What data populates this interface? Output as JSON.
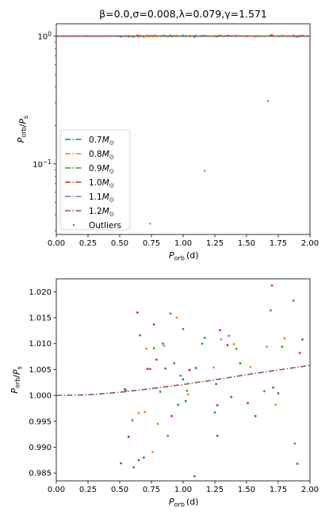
{
  "chart_data": [
    {
      "type": "line",
      "title": "β=0.0,σ=0.008,λ=0.079,γ=1.571",
      "xlabel": "P_orb(d)",
      "ylabel": "P_orb/P_s",
      "xlim": [
        0.0,
        2.0
      ],
      "ylim": [
        0.028,
        1.25
      ],
      "yscale": "log",
      "grid": false,
      "legend_position": "lower-left",
      "x_ticks": [
        "0.00",
        "0.25",
        "0.50",
        "0.75",
        "1.00",
        "1.25",
        "1.50",
        "1.75",
        "2.00"
      ],
      "y_ticks": [
        {
          "value": 1.0,
          "label": "10^0"
        },
        {
          "value": 0.1,
          "label": "10^-1"
        }
      ],
      "series": [
        {
          "name": "0.7M_⊙",
          "color": "#1f77b4",
          "style": "dashdot",
          "x": [
            0.0,
            2.0
          ],
          "y": [
            1.0,
            1.0
          ]
        },
        {
          "name": "0.8M_⊙",
          "color": "#ff7f0e",
          "style": "dashdot",
          "x": [
            0.0,
            2.0
          ],
          "y": [
            1.0,
            1.0
          ]
        },
        {
          "name": "0.9M_⊙",
          "color": "#2ca02c",
          "style": "dashdot",
          "x": [
            0.0,
            2.0
          ],
          "y": [
            1.0,
            1.0
          ]
        },
        {
          "name": "1.0M_⊙",
          "color": "#d62728",
          "style": "dashdot",
          "x": [
            0.0,
            2.0
          ],
          "y": [
            1.0,
            1.0
          ]
        },
        {
          "name": "1.1M_⊙",
          "color": "#9467bd",
          "style": "dashdot",
          "x": [
            0.0,
            2.0
          ],
          "y": [
            1.0,
            1.0
          ]
        },
        {
          "name": "1.2M_⊙",
          "color": "#8c564b",
          "style": "dashdot",
          "x": [
            0.0,
            2.0
          ],
          "y": [
            1.0,
            1.0
          ]
        }
      ],
      "outliers": {
        "name": "Outliers",
        "color": "#7f7f7f",
        "points": [
          [
            0.74,
            0.034
          ],
          [
            1.17,
            0.088
          ],
          [
            1.67,
            0.31
          ]
        ]
      }
    },
    {
      "type": "scatter",
      "xlabel": "P_orb(d)",
      "ylabel": "P_orb/P_s",
      "xlim": [
        0.0,
        2.0
      ],
      "ylim": [
        0.9835,
        1.0225
      ],
      "grid": false,
      "x_ticks": [
        "0.00",
        "0.25",
        "0.50",
        "0.75",
        "1.00",
        "1.25",
        "1.50",
        "1.75",
        "2.00"
      ],
      "y_ticks": [
        "0.985",
        "0.990",
        "0.995",
        "1.000",
        "1.005",
        "1.010",
        "1.015",
        "1.020"
      ],
      "curve": {
        "color": "#8c564b",
        "style": "dashdot",
        "x": [
          0.0,
          0.25,
          0.5,
          0.75,
          1.0,
          1.25,
          1.5,
          1.75,
          2.0
        ],
        "y": [
          1.0,
          1.0001,
          1.0006,
          1.0013,
          1.0021,
          1.003,
          1.004,
          1.0049,
          1.0058
        ]
      },
      "points": [
        {
          "x": 0.51,
          "y": 0.9869,
          "color": "#1f77b4"
        },
        {
          "x": 0.54,
          "y": 1.0012,
          "color": "#1f77b4"
        },
        {
          "x": 0.55,
          "y": 1.0009,
          "color": "#8c564b"
        },
        {
          "x": 0.57,
          "y": 0.992,
          "color": "#d62728"
        },
        {
          "x": 0.6,
          "y": 0.9952,
          "color": "#2ca02c"
        },
        {
          "x": 0.61,
          "y": 0.9861,
          "color": "#1f77b4"
        },
        {
          "x": 0.64,
          "y": 1.016,
          "color": "#d62728"
        },
        {
          "x": 0.65,
          "y": 0.9875,
          "color": "#1f77b4"
        },
        {
          "x": 0.65,
          "y": 0.9966,
          "color": "#ff7f0e"
        },
        {
          "x": 0.66,
          "y": 1.0116,
          "color": "#2ca02c"
        },
        {
          "x": 0.69,
          "y": 0.988,
          "color": "#1f77b4"
        },
        {
          "x": 0.7,
          "y": 0.9968,
          "color": "#ff7f0e"
        },
        {
          "x": 0.71,
          "y": 1.009,
          "color": "#ff7f0e"
        },
        {
          "x": 0.72,
          "y": 1.0051,
          "color": "#d62728"
        },
        {
          "x": 0.74,
          "y": 1.0051,
          "color": "#8c564b"
        },
        {
          "x": 0.76,
          "y": 0.9891,
          "color": "#ff7f0e"
        },
        {
          "x": 0.77,
          "y": 1.0137,
          "color": "#d62728"
        },
        {
          "x": 0.77,
          "y": 1.0091,
          "color": "#2ca02c"
        },
        {
          "x": 0.79,
          "y": 1.0069,
          "color": "#d62728"
        },
        {
          "x": 0.8,
          "y": 0.9945,
          "color": "#ff7f0e"
        },
        {
          "x": 0.82,
          "y": 1.0007,
          "color": "#2ca02c"
        },
        {
          "x": 0.84,
          "y": 1.01,
          "color": "#1f77b4"
        },
        {
          "x": 0.85,
          "y": 1.0096,
          "color": "#ff7f0e"
        },
        {
          "x": 0.86,
          "y": 1.0052,
          "color": "#8c564b"
        },
        {
          "x": 0.88,
          "y": 0.9922,
          "color": "#2ca02c"
        },
        {
          "x": 0.9,
          "y": 1.0158,
          "color": "#9467bd"
        },
        {
          "x": 0.91,
          "y": 0.996,
          "color": "#d62728"
        },
        {
          "x": 0.93,
          "y": 1.0062,
          "color": "#2ca02c"
        },
        {
          "x": 0.95,
          "y": 1.015,
          "color": "#ff7f0e"
        },
        {
          "x": 0.96,
          "y": 0.9982,
          "color": "#2ca02c"
        },
        {
          "x": 0.98,
          "y": 1.0038,
          "color": "#9467bd"
        },
        {
          "x": 1.0,
          "y": 1.0128,
          "color": "#2ca02c"
        },
        {
          "x": 1.0,
          "y": 1.0031,
          "color": "#1f77b4"
        },
        {
          "x": 1.02,
          "y": 0.9989,
          "color": "#1f77b4"
        },
        {
          "x": 1.03,
          "y": 1.0009,
          "color": "#2ca02c"
        },
        {
          "x": 1.04,
          "y": 1.0002,
          "color": "#ff7f0e"
        },
        {
          "x": 1.05,
          "y": 1.0049,
          "color": "#d62728"
        },
        {
          "x": 1.09,
          "y": 0.9844,
          "color": "#1f77b4"
        },
        {
          "x": 1.1,
          "y": 1.0053,
          "color": "#1f77b4"
        },
        {
          "x": 1.15,
          "y": 1.01,
          "color": "#2ca02c"
        },
        {
          "x": 1.17,
          "y": 1.0111,
          "color": "#2ca02c"
        },
        {
          "x": 1.24,
          "y": 1.0054,
          "color": "#ff7f0e"
        },
        {
          "x": 1.25,
          "y": 0.9967,
          "color": "#2ca02c"
        },
        {
          "x": 1.26,
          "y": 1.0022,
          "color": "#1f77b4"
        },
        {
          "x": 1.27,
          "y": 0.9981,
          "color": "#d62728"
        },
        {
          "x": 1.29,
          "y": 1.0126,
          "color": "#d62728"
        },
        {
          "x": 1.3,
          "y": 1.0108,
          "color": "#ff7f0e"
        },
        {
          "x": 1.35,
          "y": 1.0097,
          "color": "#d62728"
        },
        {
          "x": 1.36,
          "y": 1.0115,
          "color": "#9467bd"
        },
        {
          "x": 1.38,
          "y": 0.9997,
          "color": "#1f77b4"
        },
        {
          "x": 1.4,
          "y": 1.0099,
          "color": "#ff7f0e"
        },
        {
          "x": 1.42,
          "y": 1.009,
          "color": "#2ca02c"
        },
        {
          "x": 1.27,
          "y": 0.9922,
          "color": "#8c564b"
        },
        {
          "x": 1.45,
          "y": 1.0062,
          "color": "#2ca02c"
        },
        {
          "x": 1.51,
          "y": 0.9985,
          "color": "#d62728"
        },
        {
          "x": 1.53,
          "y": 1.0055,
          "color": "#ff7f0e"
        },
        {
          "x": 1.57,
          "y": 0.996,
          "color": "#d62728"
        },
        {
          "x": 1.64,
          "y": 1.0008,
          "color": "#2ca02c"
        },
        {
          "x": 1.66,
          "y": 1.0094,
          "color": "#ff7f0e"
        },
        {
          "x": 1.69,
          "y": 1.0164,
          "color": "#2ca02c"
        },
        {
          "x": 1.7,
          "y": 1.0212,
          "color": "#d62728"
        },
        {
          "x": 1.71,
          "y": 1.0015,
          "color": "#8c564b"
        },
        {
          "x": 1.73,
          "y": 0.9982,
          "color": "#ff7f0e"
        },
        {
          "x": 1.75,
          "y": 1.0004,
          "color": "#1f77b4"
        },
        {
          "x": 1.78,
          "y": 1.0094,
          "color": "#2ca02c"
        },
        {
          "x": 1.8,
          "y": 1.011,
          "color": "#ff7f0e"
        },
        {
          "x": 1.88,
          "y": 0.9907,
          "color": "#9467bd"
        },
        {
          "x": 1.87,
          "y": 1.0183,
          "color": "#9467bd"
        },
        {
          "x": 1.9,
          "y": 0.9868,
          "color": "#8c564b"
        },
        {
          "x": 1.92,
          "y": 1.0082,
          "color": "#d62728"
        },
        {
          "x": 1.94,
          "y": 1.0108,
          "color": "#8c564b"
        }
      ]
    }
  ]
}
